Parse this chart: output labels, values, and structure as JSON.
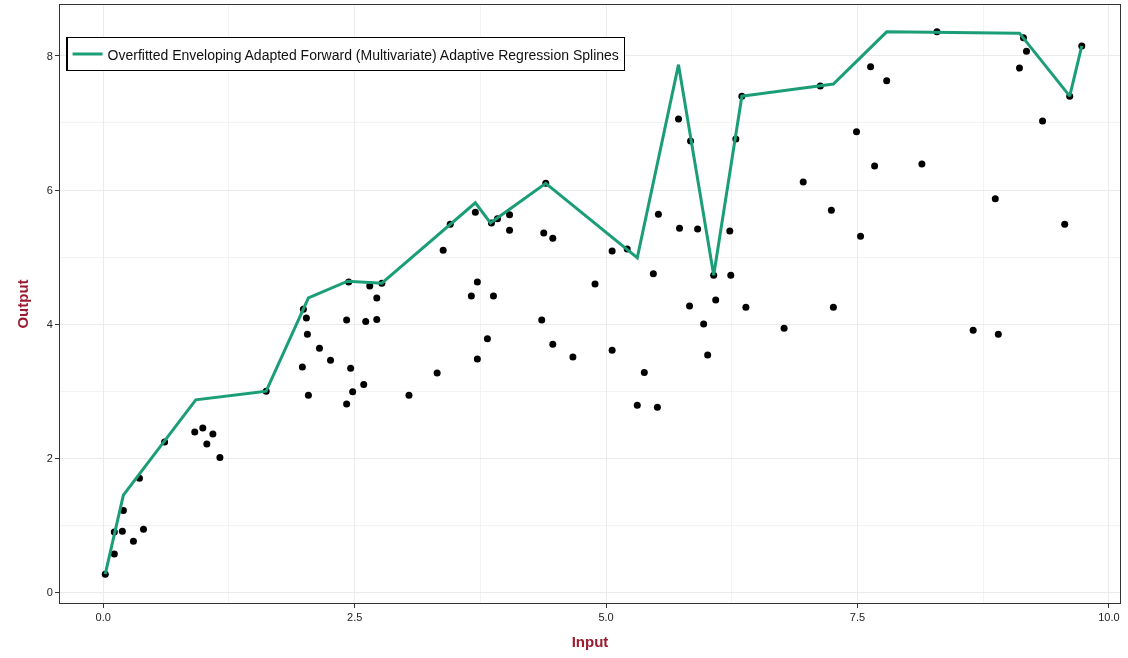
{
  "chart_data": {
    "type": "scatter",
    "xlabel": "Input",
    "ylabel": "Output",
    "xlim": [
      -0.43,
      10.11
    ],
    "ylim": [
      -0.16,
      8.76
    ],
    "xticks": [
      {
        "value": 0,
        "label": "0.0"
      },
      {
        "value": 2.5,
        "label": "2.5"
      },
      {
        "value": 5,
        "label": "5.0"
      },
      {
        "value": 7.5,
        "label": "7.5"
      },
      {
        "value": 10,
        "label": "10.0"
      }
    ],
    "yticks": [
      0,
      2,
      4,
      6,
      8
    ],
    "grid": true,
    "legend": "top left",
    "series": [
      {
        "color": "#000000",
        "marker": "circle",
        "x": [
          0.02,
          0.11,
          0.11,
          0.19,
          0.2,
          0.3,
          0.4,
          0.36,
          0.61,
          0.91,
          0.99,
          1.09,
          1.03,
          1.16,
          1.62,
          1.99,
          2.02,
          2.03,
          2.15,
          2.26,
          1.98,
          2.04,
          2.42,
          2.44,
          2.65,
          2.77,
          2.72,
          2.61,
          2.72,
          2.46,
          2.48,
          2.59,
          2.42,
          3.04,
          3.32,
          3.38,
          3.45,
          3.66,
          3.72,
          3.7,
          3.72,
          3.82,
          3.88,
          3.86,
          3.92,
          4.04,
          4.04,
          4.36,
          4.38,
          4.4,
          4.47,
          4.47,
          4.67,
          4.89,
          5.06,
          5.06,
          5.21,
          5.31,
          5.38,
          5.51,
          5.47,
          5.52,
          5.72,
          5.73,
          5.84,
          5.91,
          5.83,
          5.97,
          6.01,
          6.07,
          6.09,
          6.23,
          6.24,
          6.29,
          6.35,
          6.39,
          6.77,
          6.96,
          7.13,
          7.24,
          7.26,
          7.49,
          7.53,
          7.63,
          7.67,
          7.79,
          8.14,
          8.29,
          8.65,
          8.87,
          8.9,
          9.11,
          9.15,
          9.18,
          9.34,
          9.56,
          9.61,
          9.73
        ],
        "values": [
          0.27,
          0.57,
          0.9,
          0.91,
          1.22,
          0.76,
          0.94,
          1.7,
          2.24,
          2.39,
          2.45,
          2.36,
          2.21,
          2.01,
          3.0,
          4.22,
          4.09,
          3.85,
          3.64,
          3.46,
          3.36,
          2.94,
          4.06,
          4.63,
          4.57,
          4.61,
          4.39,
          4.04,
          4.07,
          3.34,
          2.99,
          3.1,
          2.81,
          2.94,
          3.27,
          5.1,
          5.49,
          4.42,
          4.63,
          5.67,
          3.48,
          3.78,
          4.42,
          5.51,
          5.57,
          5.63,
          5.4,
          4.06,
          5.36,
          6.1,
          5.28,
          3.7,
          3.51,
          4.6,
          5.09,
          3.61,
          5.12,
          2.79,
          3.28,
          2.76,
          4.75,
          5.64,
          7.06,
          5.43,
          6.73,
          5.42,
          4.27,
          4.0,
          3.54,
          4.73,
          4.36,
          5.39,
          4.73,
          6.76,
          7.4,
          4.25,
          3.94,
          6.12,
          7.55,
          5.7,
          4.25,
          6.87,
          5.31,
          7.84,
          6.36,
          7.63,
          6.39,
          8.36,
          3.91,
          5.87,
          3.85,
          7.82,
          8.27,
          8.07,
          7.03,
          5.49,
          7.4,
          8.15
        ]
      },
      {
        "type": "line",
        "name": "Overfitted Enveloping Adapted Forward (Multivariate) Adaptive Regression Splines",
        "color": "#1b9e77",
        "marker": "none",
        "line_style": "solid",
        "x": [
          0.02,
          0.2,
          0.92,
          1.62,
          2.04,
          2.43,
          2.77,
          3.7,
          3.85,
          4.4,
          5.31,
          5.72,
          6.07,
          6.35,
          7.26,
          7.79,
          9.11,
          9.61,
          9.73
        ],
        "values": [
          0.27,
          1.45,
          2.87,
          3.0,
          4.39,
          4.64,
          4.61,
          5.81,
          5.51,
          6.1,
          4.99,
          7.87,
          4.73,
          7.4,
          7.58,
          8.36,
          8.34,
          7.4,
          8.15
        ]
      }
    ]
  }
}
